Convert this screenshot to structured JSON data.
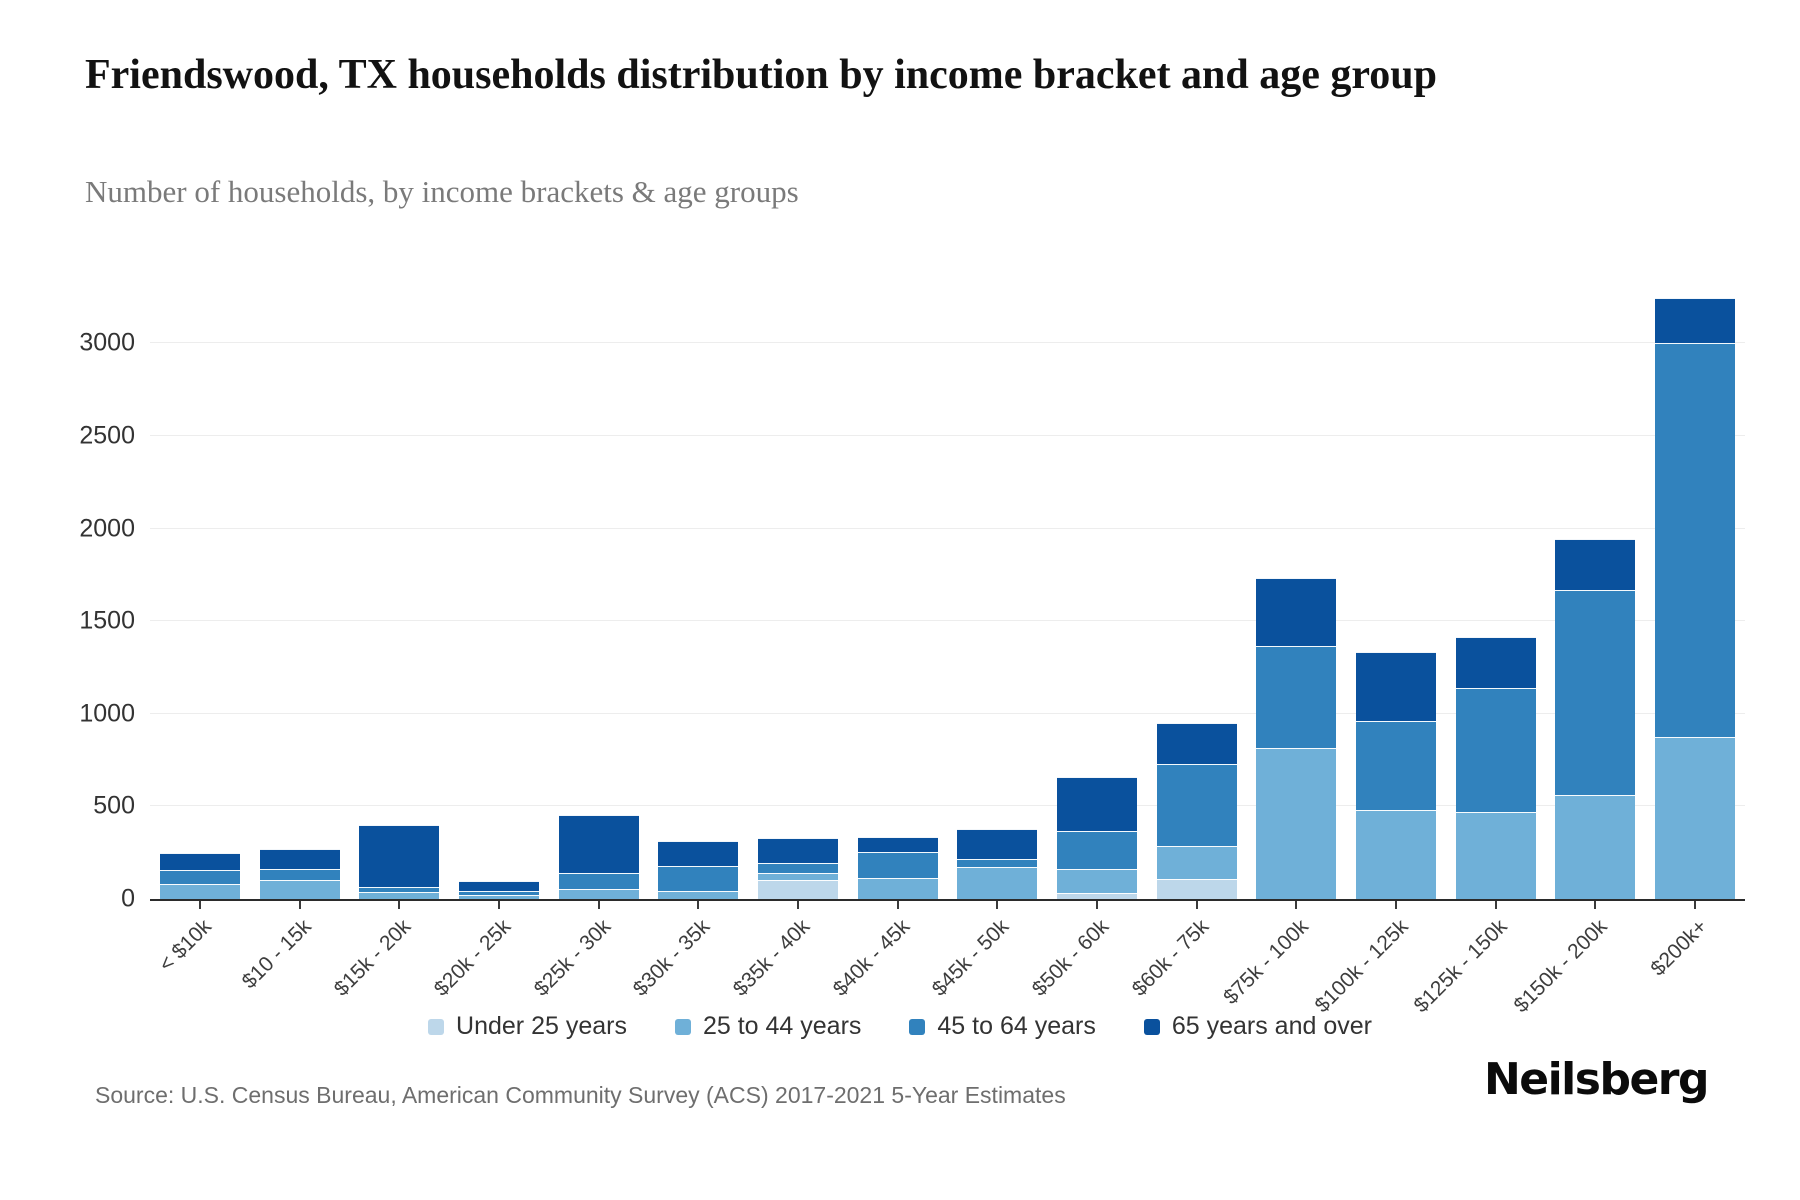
{
  "header": {
    "title": "Friendswood, TX households distribution by income bracket and age group",
    "subtitle": "Number of households, by income brackets & age groups"
  },
  "footer": {
    "source": "Source: U.S. Census Bureau, American Community Survey (ACS) 2017-2021 5-Year Estimates",
    "logo": "Neilsberg"
  },
  "chart_data": {
    "type": "bar",
    "stacked": true,
    "title": "Friendswood, TX households distribution by income bracket and age group",
    "subtitle": "Number of households, by income brackets & age groups",
    "xlabel": "",
    "ylabel": "",
    "grid": true,
    "legend_position": "bottom",
    "categories": [
      "< $10k",
      "$10 - 15k",
      "$15k - 20k",
      "$20k - 25k",
      "$25k - 30k",
      "$30k - 35k",
      "$35k - 40k",
      "$40k - 45k",
      "$45k - 50k",
      "$50k - 60k",
      "$60k - 75k",
      "$75k - 100k",
      "$100k - 125k",
      "$125k - 150k",
      "$150k - 200k",
      "$200k+"
    ],
    "series": [
      {
        "name": "Under 25 years",
        "color": "#bdd7ea",
        "values": [
          0,
          0,
          0,
          0,
          0,
          0,
          95,
          0,
          0,
          25,
          105,
          0,
          0,
          0,
          0,
          0
        ]
      },
      {
        "name": "25 to 44 years",
        "color": "#6fb0d8",
        "values": [
          75,
          95,
          30,
          15,
          50,
          40,
          35,
          110,
          165,
          125,
          170,
          810,
          475,
          465,
          555,
          870
        ]
      },
      {
        "name": "45 to 64 years",
        "color": "#3182bd",
        "values": [
          70,
          55,
          25,
          20,
          80,
          125,
          50,
          135,
          40,
          200,
          440,
          545,
          475,
          665,
          1100,
          2120
        ]
      },
      {
        "name": "65 years and over",
        "color": "#0a519d",
        "values": [
          90,
          105,
          330,
          45,
          310,
          130,
          130,
          75,
          155,
          285,
          215,
          360,
          370,
          270,
          275,
          240
        ]
      }
    ],
    "totals": [
      235,
      255,
      385,
      80,
      440,
      295,
      310,
      320,
      360,
      635,
      930,
      1715,
      1320,
      1400,
      1930,
      3230
    ],
    "yticks": [
      0,
      500,
      1000,
      1500,
      2000,
      2500,
      3000
    ],
    "ylim": [
      0,
      3455
    ]
  }
}
